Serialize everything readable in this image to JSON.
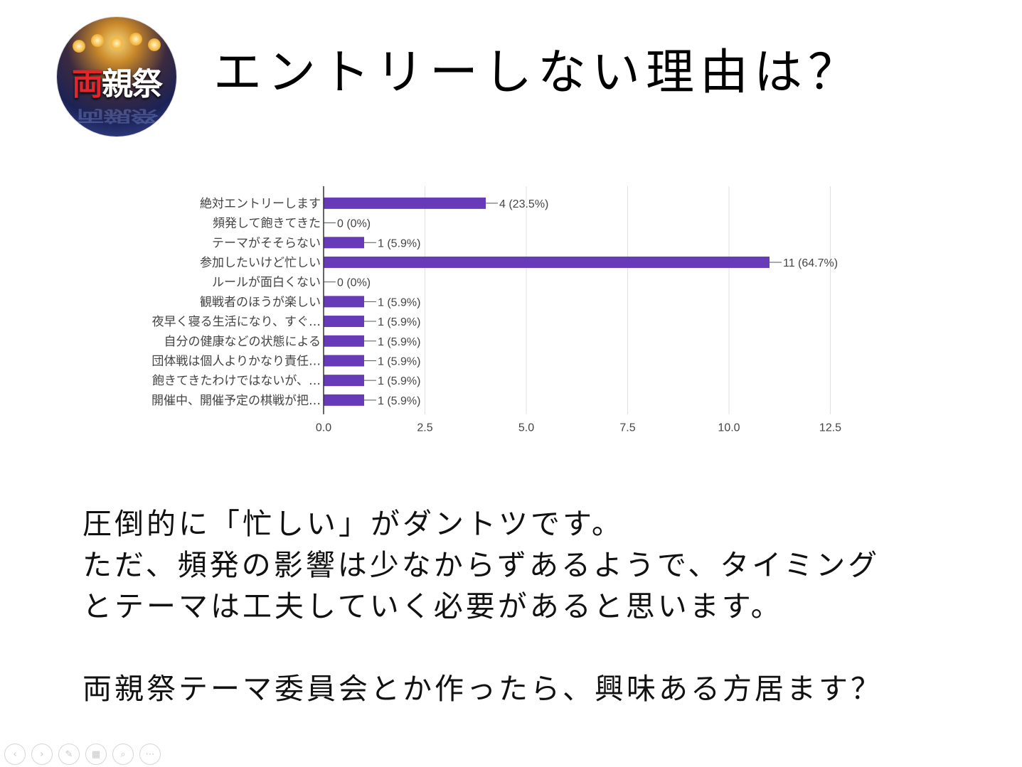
{
  "logo": {
    "text_first": "両",
    "text_rest": "親祭"
  },
  "title": "エントリーしない理由は？",
  "chart_data": {
    "type": "bar",
    "orientation": "horizontal",
    "categories": [
      "絶対エントリーします",
      "頻発して飽きてきた",
      "テーマがそそらない",
      "参加したいけど忙しい",
      "ルールが面白くない",
      "観戦者のほうが楽しい",
      "夜早く寝る生活になり、すぐ…",
      "自分の健康などの状態による",
      "団体戦は個人よりかなり責任…",
      "飽きてきたわけではないが、…",
      "開催中、開催予定の棋戦が把…"
    ],
    "values": [
      4,
      0,
      1,
      11,
      0,
      1,
      1,
      1,
      1,
      1,
      1
    ],
    "data_labels": [
      "4 (23.5%)",
      "0 (0%)",
      "1 (5.9%)",
      "11 (64.7%)",
      "0 (0%)",
      "1 (5.9%)",
      "1 (5.9%)",
      "1 (5.9%)",
      "1 (5.9%)",
      "1 (5.9%)",
      "1 (5.9%)"
    ],
    "xlim": [
      0,
      12.5
    ],
    "xticks": [
      "0.0",
      "2.5",
      "5.0",
      "7.5",
      "10.0",
      "12.5"
    ],
    "bar_color": "#673ab7",
    "grid": true
  },
  "body": {
    "line1": "圧倒的に「忙しい」がダントツです。",
    "line2": "ただ、頻発の影響は少なからずあるようで、タイミング",
    "line3": "とテーマは工夫していく必要があると思います。",
    "line4": "両親祭テーマ委員会とか作ったら、興味ある方居ます？"
  },
  "controls": {
    "prev_icon": "‹",
    "next_icon": "›",
    "pen_icon": "✎",
    "slides_icon": "▦",
    "zoom_icon": "⌕",
    "more_icon": "⋯"
  }
}
